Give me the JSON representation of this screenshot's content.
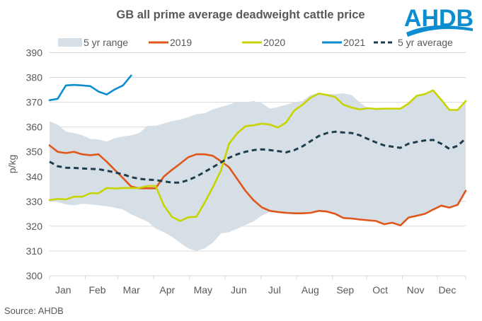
{
  "logo": {
    "text": "AHDB",
    "color": "#0b8dd0"
  },
  "source": "Source: AHDB",
  "chart_data": {
    "type": "line",
    "title": "GB all prime average deadweight cattle price",
    "xlabel": "",
    "ylabel": "p/kg",
    "ylim": [
      300,
      390
    ],
    "yticks": [
      300,
      310,
      320,
      330,
      340,
      350,
      360,
      370,
      380,
      390
    ],
    "grid": true,
    "legend_position": "top",
    "x_unit": "week of year",
    "x_count": 52,
    "month_ticks": [
      {
        "label": "Jan",
        "week": 0
      },
      {
        "label": "Feb",
        "week": 4.4
      },
      {
        "label": "Mar",
        "week": 8.4
      },
      {
        "label": "Apr",
        "week": 12.8
      },
      {
        "label": "May",
        "week": 17.2
      },
      {
        "label": "Jun",
        "week": 21.6
      },
      {
        "label": "Jul",
        "week": 26.0
      },
      {
        "label": "Aug",
        "week": 30.4
      },
      {
        "label": "Sep",
        "week": 34.8
      },
      {
        "label": "Oct",
        "week": 39.0
      },
      {
        "label": "Nov",
        "week": 43.4
      },
      {
        "label": "Dec",
        "week": 47.7
      }
    ],
    "x_end_week": 51.2,
    "range": {
      "name": "5 yr range",
      "color": "#d6dfe5",
      "upper": [
        362.4,
        361,
        358.1,
        357.6,
        356.7,
        355.2,
        355,
        354.1,
        355.5,
        356.2,
        356.7,
        357.6,
        360.5,
        360.5,
        361.4,
        362.4,
        363,
        364,
        365.2,
        365.5,
        367.1,
        368.1,
        369,
        370.3,
        370,
        370.5,
        369.7,
        367.4,
        368.1,
        369,
        370,
        370.5,
        372.9,
        373.8,
        373.3,
        373.3,
        373.6,
        372.9,
        370,
        367.6,
        367.3,
        367.4,
        367.4,
        367.4,
        369.5,
        372.6,
        373.3,
        374.8,
        371,
        366.9,
        366.9,
        370.5
      ],
      "lower": [
        330.3,
        329.7,
        328.8,
        328.4,
        329,
        328.8,
        328.4,
        328.1,
        327.4,
        326.7,
        324.8,
        323.3,
        321.9,
        319,
        317.6,
        315.7,
        313.3,
        311,
        310,
        311,
        313.3,
        317.1,
        317.6,
        319,
        320.5,
        321.9,
        324.3,
        325.7,
        325.7,
        325.4,
        325.2,
        325.2,
        325.4,
        326.2,
        325.9,
        325,
        323.3,
        323.1,
        322.7,
        322.4,
        322.1,
        320.8,
        321.4,
        320.3,
        323.5,
        324.2,
        325,
        326.7,
        328.3,
        327.5,
        328.6,
        334.3
      ]
    },
    "series": [
      {
        "name": "2019",
        "color": "#e0561b",
        "dash": false,
        "values": [
          352.6,
          350,
          349.5,
          350,
          349,
          348.6,
          349,
          346,
          342.7,
          339.4,
          336,
          335.3,
          335.3,
          335.3,
          340,
          342.7,
          345.2,
          347.8,
          349,
          349,
          348.4,
          346.2,
          343.8,
          339,
          334.3,
          330.5,
          327.6,
          326.2,
          325.7,
          325.4,
          325.2,
          325.2,
          325.4,
          326.2,
          325.9,
          325,
          323.3,
          323.1,
          322.7,
          322.4,
          322.1,
          320.8,
          321.4,
          320.3,
          323.5,
          324.2,
          325,
          326.7,
          328.3,
          327.5,
          328.6,
          334.3
        ]
      },
      {
        "name": "2020",
        "color": "#c8d400",
        "dash": false,
        "values": [
          330.5,
          331,
          330.8,
          331.9,
          331.9,
          333.3,
          333.3,
          335.4,
          335.2,
          335.4,
          335.4,
          335.4,
          336.2,
          336.2,
          328.4,
          323.8,
          322.1,
          323.6,
          323.8,
          329.5,
          335.7,
          342.4,
          353.3,
          357.5,
          360.3,
          360.7,
          361.4,
          361,
          359.8,
          361.9,
          366.7,
          369,
          371.9,
          373.5,
          372.9,
          372.1,
          369,
          367.9,
          367.1,
          367.6,
          367.3,
          367.4,
          367.4,
          367.4,
          369.5,
          372.6,
          373.3,
          374.8,
          371,
          366.9,
          366.9,
          370.5
        ]
      },
      {
        "name": "2021",
        "color": "#0b8dd0",
        "dash": false,
        "values": [
          370.8,
          371.4,
          376.8,
          377,
          376.8,
          376.5,
          374.3,
          373.1,
          375.2,
          376.8,
          380.8
        ]
      },
      {
        "name": "5 yr average",
        "color": "#1f3d4d",
        "dash": true,
        "values": [
          346,
          344.2,
          343.6,
          343.5,
          343.3,
          343.1,
          343,
          342.4,
          341.7,
          340.9,
          339.8,
          339.1,
          338.8,
          338.6,
          338.1,
          337.6,
          337.6,
          338.6,
          340,
          341.9,
          343.8,
          345.7,
          347.6,
          349,
          350,
          350.7,
          351,
          350.7,
          350.3,
          349.8,
          350.7,
          352.2,
          354.3,
          356.4,
          357.6,
          358.1,
          357.8,
          357.6,
          356.7,
          355.2,
          353.8,
          352.6,
          352.1,
          351.6,
          353.3,
          354,
          354.6,
          354.8,
          353.3,
          351.2,
          352.4,
          355.4
        ]
      }
    ],
    "legend": [
      {
        "label": "5 yr range",
        "kind": "area",
        "color": "#d6dfe5"
      },
      {
        "label": "2019",
        "kind": "line",
        "color": "#e0561b"
      },
      {
        "label": "2020",
        "kind": "line",
        "color": "#c8d400"
      },
      {
        "label": "2021",
        "kind": "line",
        "color": "#0b8dd0"
      },
      {
        "label": "5 yr average",
        "kind": "dash",
        "color": "#1f3d4d"
      }
    ]
  }
}
